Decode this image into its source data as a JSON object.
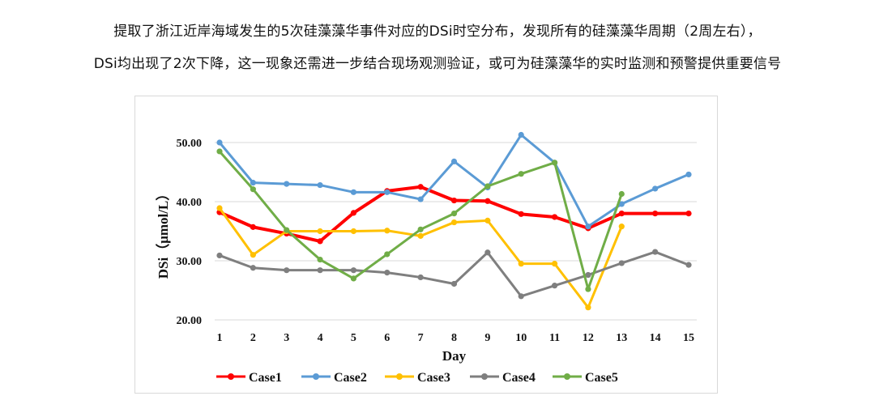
{
  "caption": {
    "line1": "提取了浙江近岸海域发生的5次硅藻藻华事件对应的DSi时空分布，发现所有的硅藻藻华周期（2周左右），",
    "line2": "DSi均出现了2次下降，这一现象还需进一步结合现场观测验证，或可为硅藻藻华的实时监测和预警提供重要信号"
  },
  "chart_data": {
    "type": "line",
    "title": "",
    "xlabel": "Day",
    "ylabel": "DSi（μmol/L）",
    "x": [
      1,
      2,
      3,
      4,
      5,
      6,
      7,
      8,
      9,
      10,
      11,
      12,
      13,
      14,
      15
    ],
    "ylim": [
      20,
      50
    ],
    "yticks": [
      "20.00",
      "30.00",
      "40.00",
      "50.00"
    ],
    "grid": "horizontal",
    "legend": "bottom",
    "series": [
      {
        "name": "Case1",
        "color": "#ff0000",
        "values": [
          38.2,
          35.7,
          34.6,
          33.3,
          38.1,
          41.8,
          42.5,
          40.2,
          40.1,
          37.9,
          37.4,
          35.5,
          38.0,
          38.0,
          38.0
        ]
      },
      {
        "name": "Case2",
        "color": "#5b9bd5",
        "values": [
          50.0,
          43.2,
          43.0,
          42.8,
          41.6,
          41.6,
          40.4,
          46.8,
          42.4,
          51.3,
          46.6,
          35.8,
          39.6,
          42.2,
          44.6
        ]
      },
      {
        "name": "Case3",
        "color": "#ffc000",
        "values": [
          38.9,
          31.0,
          35.0,
          35.0,
          35.0,
          35.1,
          34.2,
          36.5,
          36.8,
          29.5,
          29.5,
          22.1,
          35.8,
          null,
          null
        ]
      },
      {
        "name": "Case4",
        "color": "#7f7f7f",
        "values": [
          30.9,
          28.8,
          28.4,
          28.4,
          28.4,
          28.0,
          27.2,
          26.1,
          31.4,
          24.0,
          25.8,
          27.6,
          29.6,
          31.5,
          29.3
        ]
      },
      {
        "name": "Case5",
        "color": "#70ad47",
        "values": [
          48.5,
          42.1,
          35.2,
          30.2,
          27.0,
          31.1,
          35.3,
          38.0,
          42.6,
          44.7,
          46.6,
          25.2,
          41.3,
          null,
          null
        ]
      }
    ]
  }
}
